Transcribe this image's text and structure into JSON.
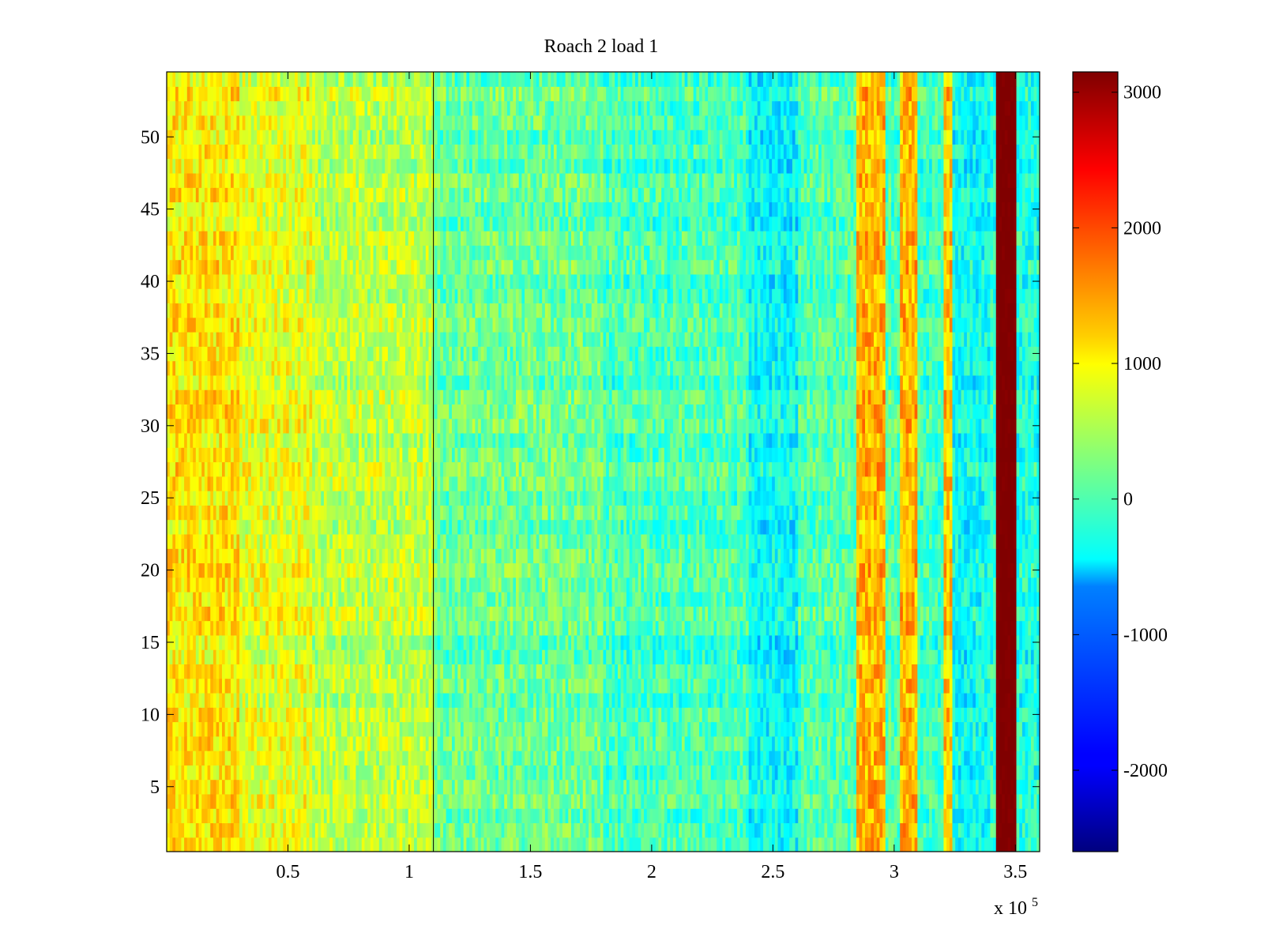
{
  "chart_data": {
    "type": "heatmap",
    "title": "Roach 2 load 1",
    "xlabel": "",
    "ylabel": "",
    "x_multiplier_label": {
      "base": "x 10",
      "exponent": "5"
    },
    "xlim": [
      0,
      360000
    ],
    "ylim": [
      0.5,
      54.5
    ],
    "x_ticks": [
      50000,
      100000,
      150000,
      200000,
      250000,
      300000,
      350000
    ],
    "x_tick_labels": [
      "0.5",
      "1",
      "1.5",
      "2",
      "2.5",
      "3",
      "3.5"
    ],
    "y_ticks": [
      5,
      10,
      15,
      20,
      25,
      30,
      35,
      40,
      45,
      50
    ],
    "y_tick_labels": [
      "5",
      "10",
      "15",
      "20",
      "25",
      "30",
      "35",
      "40",
      "45",
      "50"
    ],
    "colormap": "jet",
    "clim": [
      -2600,
      3150
    ],
    "colorbar": {
      "ticks": [
        -2000,
        -1000,
        0,
        1000,
        2000,
        3000
      ],
      "tick_labels": [
        "-2000",
        "-1000",
        "0",
        "1000",
        "2000",
        "3000"
      ]
    },
    "rows": 54,
    "column_bands": [
      {
        "x": [
          0,
          30000
        ],
        "mean": 1100
      },
      {
        "x": [
          30000,
          60000
        ],
        "mean": 850
      },
      {
        "x": [
          60000,
          110000
        ],
        "mean": 600
      },
      {
        "x": [
          110000,
          180000
        ],
        "mean": 150
      },
      {
        "x": [
          180000,
          240000
        ],
        "mean": -50
      },
      {
        "x": [
          240000,
          260000
        ],
        "mean": -450
      },
      {
        "x": [
          260000,
          285000
        ],
        "mean": 0
      },
      {
        "x": [
          285000,
          296000
        ],
        "mean": 1400
      },
      {
        "x": [
          296000,
          302000
        ],
        "mean": 0
      },
      {
        "x": [
          302000,
          310000
        ],
        "mean": 1400
      },
      {
        "x": [
          310000,
          320000
        ],
        "mean": -100
      },
      {
        "x": [
          320000,
          324000
        ],
        "mean": 1300
      },
      {
        "x": [
          324000,
          340000
        ],
        "mean": -400
      },
      {
        "x": [
          340000,
          342000
        ],
        "mean": -200
      },
      {
        "x": [
          342000,
          350000
        ],
        "mean": 3150
      },
      {
        "x": [
          350000,
          360000
        ],
        "mean": -300
      }
    ],
    "annotations": [
      {
        "type": "vertical_line",
        "x": 110000,
        "color": "#000000"
      }
    ]
  }
}
